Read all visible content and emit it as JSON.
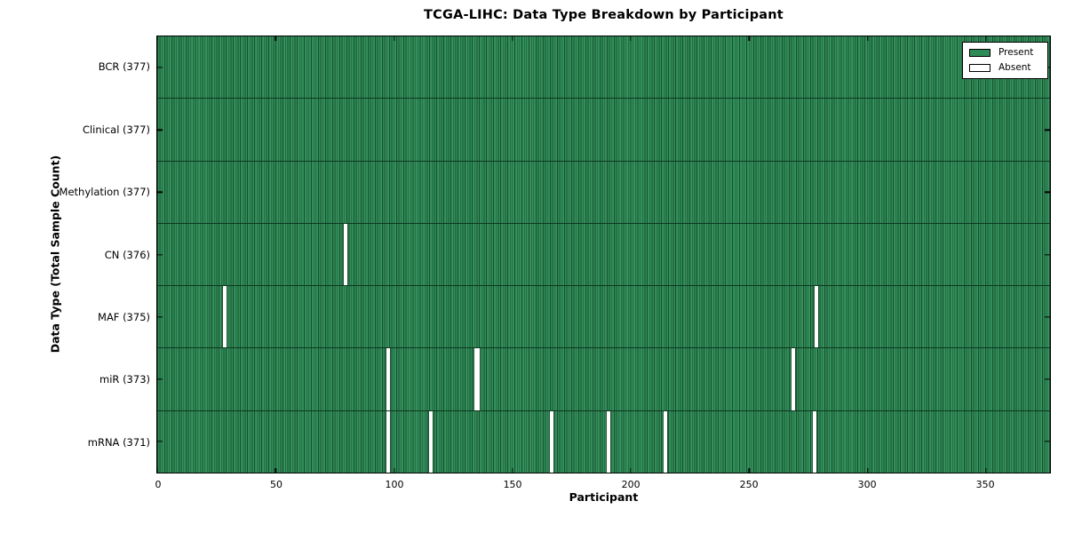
{
  "chart_data": {
    "type": "heatmap",
    "title": "TCGA-LIHC: Data Type Breakdown by Participant",
    "xlabel": "Participant",
    "ylabel": "Data Type (Total Sample Count)",
    "xlim": [
      0,
      377
    ],
    "x_ticks": [
      0,
      50,
      100,
      150,
      200,
      250,
      300,
      350
    ],
    "n_participants": 377,
    "grid": false,
    "legend": {
      "position": "upper right",
      "items": [
        {
          "label": "Present",
          "color": "#2e8b57"
        },
        {
          "label": "Absent",
          "color": "#ffffff"
        }
      ]
    },
    "colors": {
      "present": "#2e8b57",
      "absent": "#ffffff",
      "bar_edge": "#16502f",
      "spine": "#000000"
    },
    "rows": [
      {
        "name": "BCR",
        "tick_label": "BCR (377)",
        "total_samples": 377,
        "absent_participants": []
      },
      {
        "name": "Clinical",
        "tick_label": "Clinical (377)",
        "total_samples": 377,
        "absent_participants": []
      },
      {
        "name": "Methylation",
        "tick_label": "Methylation (377)",
        "total_samples": 377,
        "absent_participants": []
      },
      {
        "name": "CN",
        "tick_label": "CN (376)",
        "total_samples": 376,
        "absent_participants": [
          79
        ]
      },
      {
        "name": "MAF",
        "tick_label": "MAF (375)",
        "total_samples": 375,
        "absent_participants": [
          28,
          278
        ]
      },
      {
        "name": "miR",
        "tick_label": "miR (373)",
        "total_samples": 373,
        "absent_participants": [
          97,
          134,
          135,
          268
        ]
      },
      {
        "name": "mRNA",
        "tick_label": "mRNA (371)",
        "total_samples": 371,
        "absent_participants": [
          97,
          115,
          166,
          190,
          214,
          277
        ]
      }
    ]
  }
}
